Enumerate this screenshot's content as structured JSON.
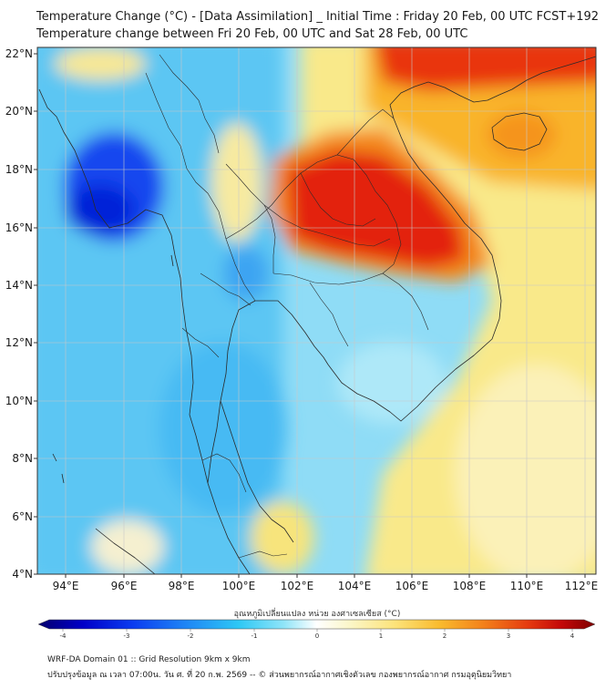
{
  "header": {
    "title_line1": "Temperature Change (°C) - [Data Assimilation] _ Initial Time : Friday 20 Feb, 00 UTC FCST+192",
    "title_line2": "Temperature change between Fri 20 Feb, 00 UTC and Sat 28 Feb, 00 UTC"
  },
  "axes": {
    "lat_labels": [
      "22°N",
      "20°N",
      "18°N",
      "16°N",
      "14°N",
      "12°N",
      "10°N",
      "8°N",
      "6°N",
      "4°N"
    ],
    "lon_labels": [
      "94°E",
      "96°E",
      "98°E",
      "100°E",
      "102°E",
      "104°E",
      "106°E",
      "108°E",
      "110°E",
      "112°E"
    ]
  },
  "colorbar": {
    "title": "อุณหภูมิเปลี่ยนแปลง หน่วย องศาเซลเซียส (°C)",
    "ticks": [
      "-4",
      "-3",
      "-2",
      "-1",
      "0",
      "1",
      "2",
      "3",
      "4"
    ],
    "colors": [
      "#05006e",
      "#0000c8",
      "#0b3cf0",
      "#1e82f5",
      "#2ec8f5",
      "#8ee4f8",
      "#e6f8fc",
      "#fbf6c8",
      "#fce37a",
      "#f9bb2e",
      "#f3801a",
      "#e53a10",
      "#c30808",
      "#7e0000"
    ]
  },
  "footer": {
    "line1": "WRF-DA Domain 01 :: Grid Resolution 9km x 9km",
    "line2": "ปรับปรุงข้อมูล ณ เวลา 07:00น. วัน ศ. ที่ 20 ก.พ. 2569 -- © ส่วนพยากรณ์อากาศเชิงตัวเลข กองพยากรณ์อากาศ กรมอุตุนิยมวิทยา"
  }
}
